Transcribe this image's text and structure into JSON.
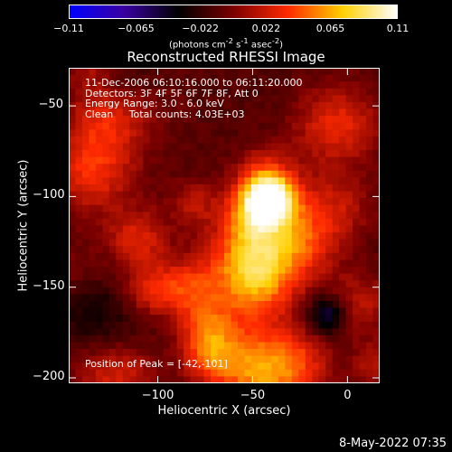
{
  "colorbar": {
    "ticks": [
      "-0.11",
      "-0.065",
      "-0.022",
      "0.022",
      "0.065",
      "0.11"
    ],
    "units": "(photons cm<sup>-2</sup> s<sup>-1</sup> asec<sup>-2</sup>)",
    "range": [
      -0.11,
      0.11
    ],
    "colormap": [
      "#0000ff",
      "#3a00a0",
      "#000000",
      "#7a0000",
      "#ff2a00",
      "#ffd000",
      "#ffffff"
    ]
  },
  "chart_data": {
    "type": "heatmap",
    "title": "Reconstructed RHESSI Image",
    "xlabel": "Heliocentric X (arcsec)",
    "ylabel": "Heliocentric Y (arcsec)",
    "xlim": [
      -147,
      17
    ],
    "ylim": [
      -203,
      -29
    ],
    "xticks": [
      -100,
      -50,
      0
    ],
    "yticks": [
      -50,
      -100,
      -150,
      -200
    ],
    "xtick_labels": [
      "−100",
      "−50",
      "0"
    ],
    "ytick_labels": [
      "−50",
      "−100",
      "−150",
      "−200"
    ],
    "peak": [
      -42,
      -101
    ],
    "peak_value": 0.11,
    "annotations": [
      "11-Dec-2006 06:10:16.000 to 06:11:20.000",
      "Detectors: 3F 4F 5F 6F 7F 8F, Att 0",
      "Energy Range: 3.0 - 6.0 keV",
      "Clean     Total counts: 4.03E+03"
    ],
    "peak_label": "Position of Peak = [-42,-101]"
  },
  "timestamp": "8-May-2022 07:35"
}
